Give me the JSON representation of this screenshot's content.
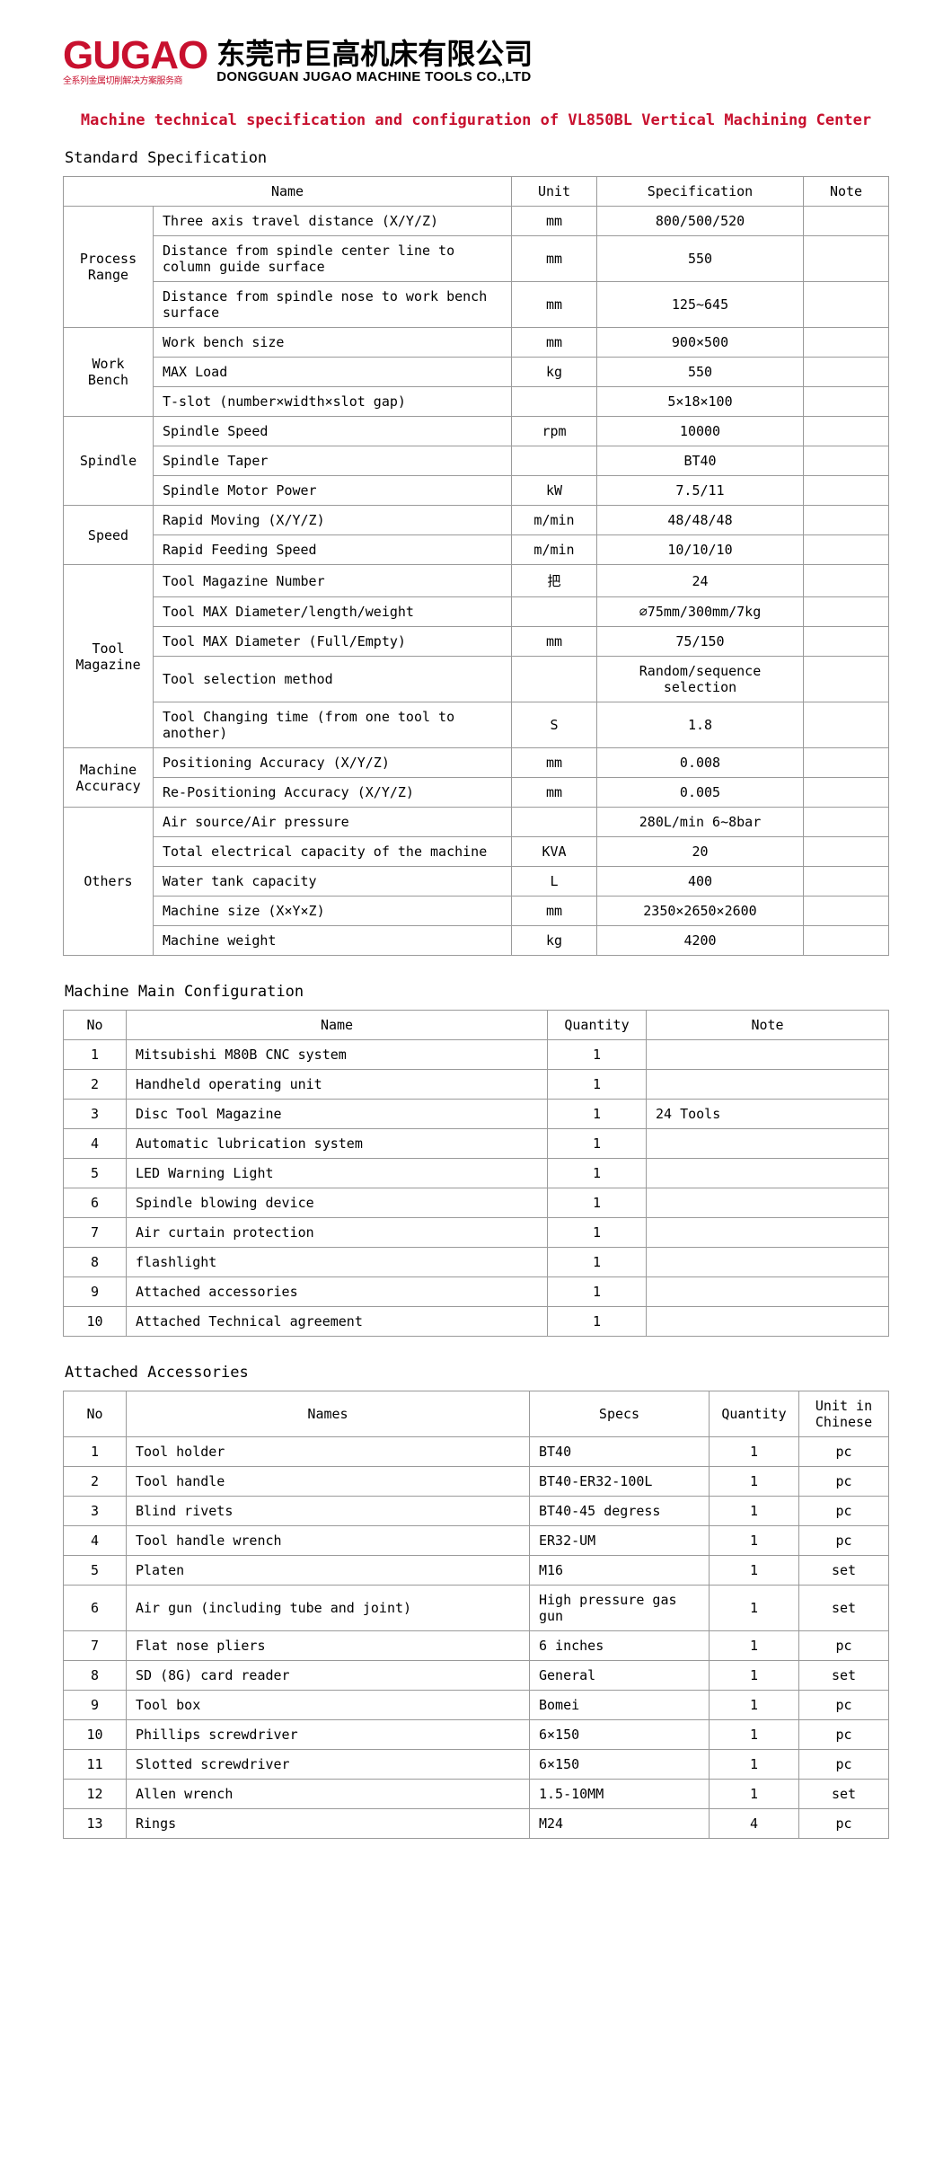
{
  "logo": {
    "brand": "GUGAO",
    "brand_sub": "全系列金属切削解决方案服务商",
    "cn": "东莞市巨高机床有限公司",
    "en": "DONGGUAN JUGAO MACHINE TOOLS CO.,LTD"
  },
  "title": "Machine technical specification and configuration of VL850BL Vertical Machining Center",
  "sections": {
    "spec_title": "Standard Specification",
    "config_title": "Machine Main Configuration",
    "acc_title": "Attached Accessories"
  },
  "spec": {
    "headers": {
      "name": "Name",
      "unit": "Unit",
      "spec": "Specification",
      "note": "Note"
    },
    "groups": [
      {
        "group": "Process Range",
        "rows": [
          {
            "name": "Three axis travel distance (X/Y/Z)",
            "unit": "mm",
            "spec": "800/500/520",
            "note": ""
          },
          {
            "name": "Distance from spindle center line to column guide surface",
            "unit": "mm",
            "spec": "550",
            "note": ""
          },
          {
            "name": "Distance from spindle nose to work bench surface",
            "unit": "mm",
            "spec": "125~645",
            "note": ""
          }
        ]
      },
      {
        "group": "Work Bench",
        "rows": [
          {
            "name": "Work bench size",
            "unit": "mm",
            "spec": "900×500",
            "note": ""
          },
          {
            "name": "MAX Load",
            "unit": "kg",
            "spec": "550",
            "note": ""
          },
          {
            "name": "T-slot (number×width×slot gap)",
            "unit": "",
            "spec": "5×18×100",
            "note": ""
          }
        ]
      },
      {
        "group": "Spindle",
        "rows": [
          {
            "name": "Spindle Speed",
            "unit": "rpm",
            "spec": "10000",
            "note": ""
          },
          {
            "name": "Spindle Taper",
            "unit": "",
            "spec": "BT40",
            "note": ""
          },
          {
            "name": "Spindle Motor Power",
            "unit": "kW",
            "spec": "7.5/11",
            "note": ""
          }
        ]
      },
      {
        "group": "Speed",
        "rows": [
          {
            "name": "Rapid Moving (X/Y/Z)",
            "unit": "m/min",
            "spec": "48/48/48",
            "note": ""
          },
          {
            "name": "Rapid Feeding Speed",
            "unit": "m/min",
            "spec": "10/10/10",
            "note": ""
          }
        ]
      },
      {
        "group": "Tool Magazine",
        "rows": [
          {
            "name": "Tool Magazine Number",
            "unit": "把",
            "spec": "24",
            "note": ""
          },
          {
            "name": "Tool MAX Diameter/length/weight",
            "unit": "",
            "spec": "∅75mm/300mm/7kg",
            "note": ""
          },
          {
            "name": "Tool MAX Diameter (Full/Empty)",
            "unit": "mm",
            "spec": "75/150",
            "note": ""
          },
          {
            "name": "Tool selection method",
            "unit": "",
            "spec": "Random/sequence selection",
            "note": ""
          },
          {
            "name": "Tool Changing time (from one tool to another)",
            "unit": "S",
            "spec": "1.8",
            "note": ""
          }
        ]
      },
      {
        "group": "Machine Accuracy",
        "rows": [
          {
            "name": "Positioning Accuracy (X/Y/Z)",
            "unit": "mm",
            "spec": "0.008",
            "note": ""
          },
          {
            "name": "Re-Positioning Accuracy (X/Y/Z)",
            "unit": "mm",
            "spec": "0.005",
            "note": ""
          }
        ]
      },
      {
        "group": "Others",
        "rows": [
          {
            "name": "Air source/Air pressure",
            "unit": "",
            "spec": "280L/min  6~8bar",
            "note": ""
          },
          {
            "name": "Total electrical capacity of the machine",
            "unit": "KVA",
            "spec": "20",
            "note": ""
          },
          {
            "name": "Water tank capacity",
            "unit": "L",
            "spec": "400",
            "note": ""
          },
          {
            "name": "Machine size (X×Y×Z)",
            "unit": "mm",
            "spec": "2350×2650×2600",
            "note": ""
          },
          {
            "name": "Machine weight",
            "unit": "kg",
            "spec": "4200",
            "note": ""
          }
        ]
      }
    ]
  },
  "config": {
    "headers": {
      "no": "No",
      "name": "Name",
      "qty": "Quantity",
      "note": "Note"
    },
    "rows": [
      {
        "no": "1",
        "name": "Mitsubishi M80B CNC system",
        "qty": "1",
        "note": ""
      },
      {
        "no": "2",
        "name": "Handheld operating unit",
        "qty": "1",
        "note": ""
      },
      {
        "no": "3",
        "name": "Disc Tool Magazine",
        "qty": "1",
        "note": "24 Tools"
      },
      {
        "no": "4",
        "name": "Automatic lubrication system",
        "qty": "1",
        "note": ""
      },
      {
        "no": "5",
        "name": "LED Warning Light",
        "qty": "1",
        "note": ""
      },
      {
        "no": "6",
        "name": "Spindle blowing device",
        "qty": "1",
        "note": ""
      },
      {
        "no": "7",
        "name": "Air curtain protection",
        "qty": "1",
        "note": ""
      },
      {
        "no": "8",
        "name": "flashlight",
        "qty": "1",
        "note": ""
      },
      {
        "no": "9",
        "name": "Attached accessories",
        "qty": "1",
        "note": ""
      },
      {
        "no": "10",
        "name": "Attached Technical agreement",
        "qty": "1",
        "note": ""
      }
    ]
  },
  "acc": {
    "headers": {
      "no": "No",
      "name": "Names",
      "spec": "Specs",
      "qty": "Quantity",
      "unit": "Unit in Chinese"
    },
    "rows": [
      {
        "no": "1",
        "name": "Tool holder",
        "spec": "BT40",
        "qty": "1",
        "unit": "pc"
      },
      {
        "no": "2",
        "name": "Tool handle",
        "spec": "BT40-ER32-100L",
        "qty": "1",
        "unit": "pc"
      },
      {
        "no": "3",
        "name": "Blind rivets",
        "spec": "BT40-45 degress",
        "qty": "1",
        "unit": "pc"
      },
      {
        "no": "4",
        "name": "Tool handle wrench",
        "spec": "ER32-UM",
        "qty": "1",
        "unit": "pc"
      },
      {
        "no": "5",
        "name": "Platen",
        "spec": "M16",
        "qty": "1",
        "unit": "set"
      },
      {
        "no": "6",
        "name": "Air gun (including tube and joint)",
        "spec": "High pressure gas gun",
        "qty": "1",
        "unit": "set"
      },
      {
        "no": "7",
        "name": "Flat nose pliers",
        "spec": "6 inches",
        "qty": "1",
        "unit": "pc"
      },
      {
        "no": "8",
        "name": "SD (8G) card reader",
        "spec": "General",
        "qty": "1",
        "unit": "set"
      },
      {
        "no": "9",
        "name": "Tool box",
        "spec": "Bomei",
        "qty": "1",
        "unit": "pc"
      },
      {
        "no": "10",
        "name": "Phillips screwdriver",
        "spec": "6×150",
        "qty": "1",
        "unit": "pc"
      },
      {
        "no": "11",
        "name": "Slotted screwdriver",
        "spec": "6×150",
        "qty": "1",
        "unit": "pc"
      },
      {
        "no": "12",
        "name": "Allen wrench",
        "spec": "1.5-10MM",
        "qty": "1",
        "unit": "set"
      },
      {
        "no": "13",
        "name": "Rings",
        "spec": "M24",
        "qty": "4",
        "unit": "pc"
      }
    ]
  }
}
